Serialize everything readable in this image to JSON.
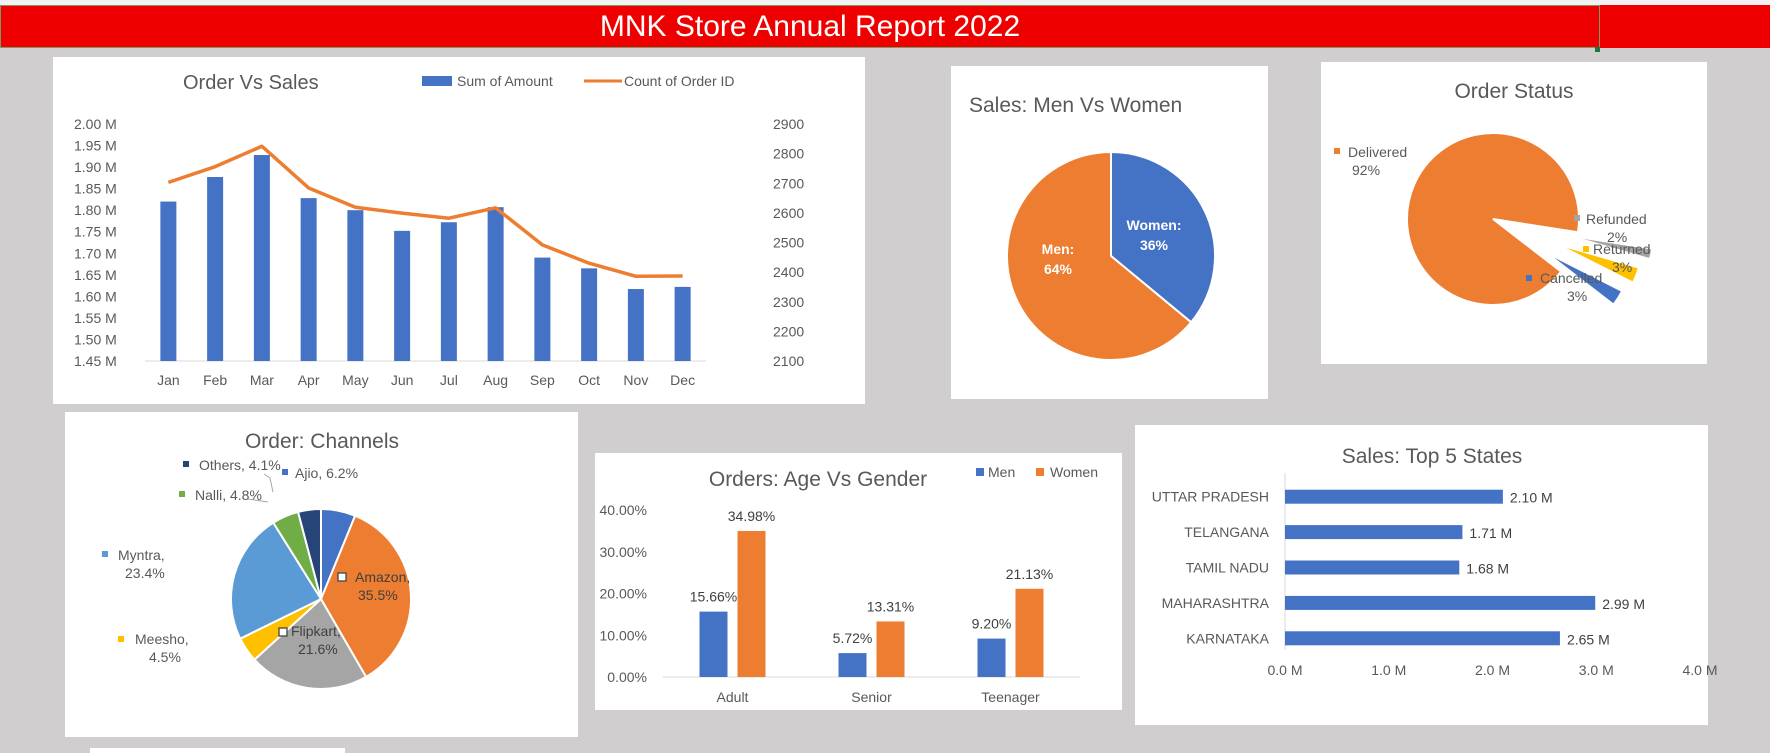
{
  "dashboard": {
    "title": "MNK Store Annual Report 2022"
  },
  "colors": {
    "blue": "#4472c4",
    "orange": "#ed7d31",
    "gray": "#a5a5a5",
    "yellow": "#ffc000",
    "lightblue": "#5b9bd5",
    "green": "#70ad47",
    "navy": "#264478",
    "banner": "#ee0000"
  },
  "chart_data": [
    {
      "id": "order_vs_sales",
      "type": "bar",
      "title": "Order Vs Sales",
      "categories": [
        "Jan",
        "Feb",
        "Mar",
        "Apr",
        "May",
        "Jun",
        "Jul",
        "Aug",
        "Sep",
        "Oct",
        "Nov",
        "Dec"
      ],
      "series": [
        {
          "name": "Sum of Amount",
          "axis": "primary",
          "type": "bar",
          "values": [
            1.82,
            1.877,
            1.928,
            1.828,
            1.8,
            1.752,
            1.772,
            1.807,
            1.69,
            1.665,
            1.617,
            1.622
          ]
        },
        {
          "name": "Count of Order ID",
          "axis": "secondary",
          "type": "line",
          "values": [
            2703,
            2756,
            2825,
            2684,
            2619,
            2599,
            2582,
            2617,
            2492,
            2430,
            2386,
            2387
          ]
        }
      ],
      "y_ticks": [
        "2.00  M",
        "1.95  M",
        "1.90  M",
        "1.85  M",
        "1.80  M",
        "1.75  M",
        "1.70  M",
        "1.65  M",
        "1.60  M",
        "1.55  M",
        "1.50  M",
        "1.45  M"
      ],
      "ylim": [
        1.45,
        2.0
      ],
      "y2_ticks": [
        "2900",
        "2800",
        "2700",
        "2600",
        "2500",
        "2400",
        "2300",
        "2200",
        "2100"
      ],
      "y2lim": [
        2100,
        2900
      ],
      "legend_position": "top"
    },
    {
      "id": "men_vs_women",
      "type": "pie",
      "title": "Sales: Men Vs Women",
      "slices": [
        {
          "label": "Women:",
          "pct": "36%",
          "value": 36,
          "color": "#4472c4"
        },
        {
          "label": "Men:",
          "pct": "64%",
          "value": 64,
          "color": "#ed7d31"
        }
      ]
    },
    {
      "id": "order_status",
      "type": "pie",
      "title": "Order Status",
      "slices": [
        {
          "label": "Delivered",
          "pct": "92%",
          "value": 92,
          "color": "#ed7d31"
        },
        {
          "label": "Refunded",
          "pct": "2%",
          "value": 2,
          "color": "#a5a5a5"
        },
        {
          "label": "Returned",
          "pct": "3%",
          "value": 3,
          "color": "#ffc000"
        },
        {
          "label": "Cancelled",
          "pct": "3%",
          "value": 3,
          "color": "#4472c4"
        }
      ]
    },
    {
      "id": "order_channels",
      "type": "pie",
      "title": "Order: Channels",
      "slices": [
        {
          "label": "Ajio, 6.2%",
          "value": 6.2,
          "color": "#4472c4"
        },
        {
          "label": "Amazon,",
          "label2": "35.5%",
          "value": 35.5,
          "color": "#ed7d31"
        },
        {
          "label": "Flipkart,",
          "label2": "21.6%",
          "value": 21.6,
          "color": "#a5a5a5"
        },
        {
          "label": "Meesho,",
          "label2": "4.5%",
          "value": 4.5,
          "color": "#ffc000"
        },
        {
          "label": "Myntra,",
          "label2": "23.4%",
          "value": 23.4,
          "color": "#5b9bd5"
        },
        {
          "label": "Nalli, 4.8%",
          "value": 4.8,
          "color": "#70ad47"
        },
        {
          "label": "Others, 4.1%",
          "value": 4.1,
          "color": "#264478"
        }
      ]
    },
    {
      "id": "age_vs_gender",
      "type": "bar",
      "title": "Orders: Age Vs Gender",
      "categories": [
        "Adult",
        "Senior",
        "Teenager"
      ],
      "series": [
        {
          "name": "Men",
          "values": [
            15.66,
            5.72,
            9.2
          ],
          "labels": [
            "15.66%",
            "5.72%",
            "9.20%"
          ]
        },
        {
          "name": "Women",
          "values": [
            34.98,
            13.31,
            21.13
          ],
          "labels": [
            "34.98%",
            "13.31%",
            "21.13%"
          ]
        }
      ],
      "y_ticks": [
        "40.00%",
        "30.00%",
        "20.00%",
        "10.00%",
        "0.00%"
      ],
      "ylim": [
        0,
        40
      ],
      "legend_position": "top-right"
    },
    {
      "id": "top5_states",
      "type": "bar",
      "orientation": "horizontal",
      "title": "Sales: Top 5 States",
      "categories": [
        "UTTAR PRADESH",
        "TELANGANA",
        "TAMIL NADU",
        "MAHARASHTRA",
        "KARNATAKA"
      ],
      "values": [
        2.1,
        1.71,
        1.68,
        2.99,
        2.65
      ],
      "labels": [
        "2.10 M",
        "1.71 M",
        "1.68 M",
        "2.99 M",
        "2.65 M"
      ],
      "x_ticks": [
        "0.0 M",
        "1.0 M",
        "2.0 M",
        "3.0 M",
        "4.0 M"
      ],
      "xlim": [
        0,
        4
      ]
    }
  ]
}
